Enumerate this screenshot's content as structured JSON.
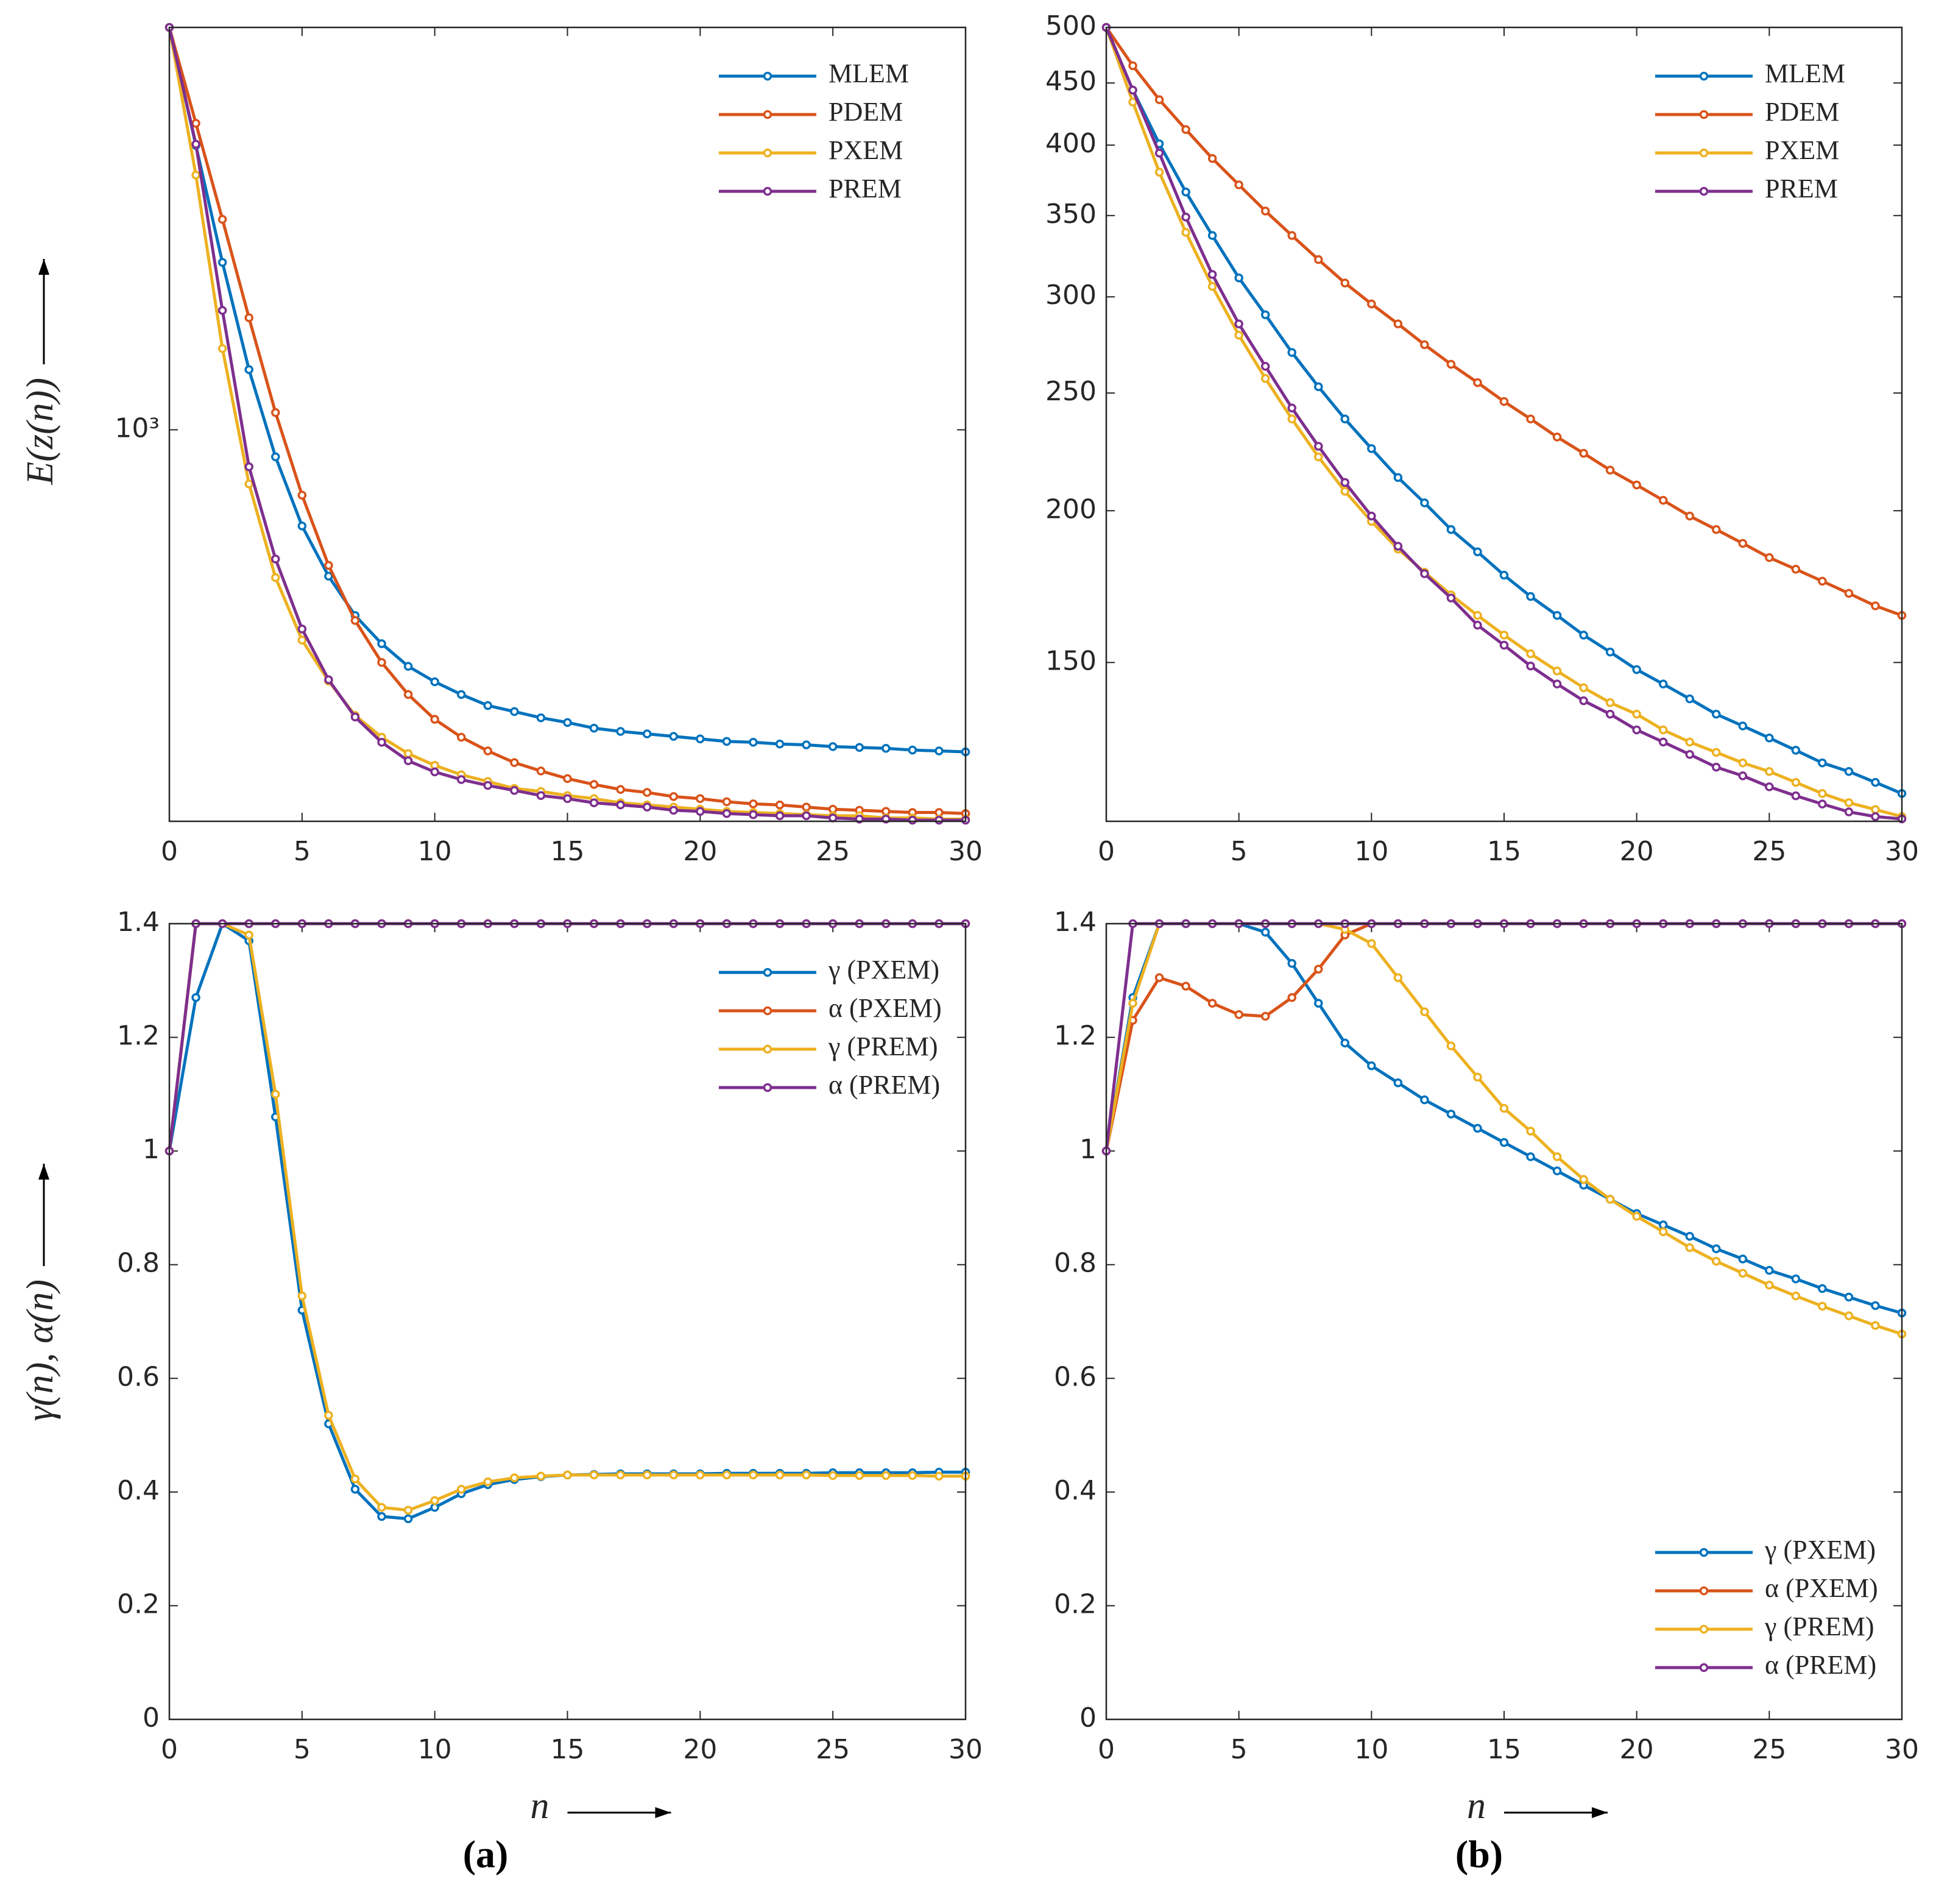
{
  "chart_data": [
    {
      "type": "line",
      "yscale": "log",
      "ylabel": "E(z(n))",
      "legend": "upper right",
      "x": [
        0,
        1,
        2,
        3,
        4,
        5,
        6,
        7,
        8,
        9,
        10,
        11,
        12,
        13,
        14,
        15,
        16,
        17,
        18,
        19,
        20,
        21,
        22,
        23,
        24,
        25,
        26,
        27,
        28,
        29,
        30
      ],
      "xlim": [
        0,
        30
      ],
      "xticks": [
        0,
        5,
        10,
        15,
        20,
        25,
        30
      ],
      "ylim": [
        255,
        4074
      ],
      "yticks": [
        {
          "value": 1000,
          "label": "10³"
        }
      ],
      "series": [
        {
          "name": "MLEM",
          "color": "#0072BD",
          "values": [
            4074,
            2698,
            1794,
            1234,
            910,
            715,
            600,
            523,
            474,
            438,
            415,
            397,
            382,
            374,
            366,
            360,
            353,
            349,
            346,
            343,
            340,
            337,
            336,
            334,
            333,
            331,
            330,
            329,
            327,
            326,
            325
          ]
        },
        {
          "name": "PDEM",
          "color": "#D95319",
          "values": [
            4074,
            2915,
            2085,
            1479,
            1062,
            796,
            623,
            514,
            444,
            397,
            364,
            342,
            326,
            313,
            304,
            296,
            290,
            285,
            282,
            278,
            276,
            273,
            271,
            270,
            268,
            266,
            265,
            264,
            263,
            263,
            262
          ]
        },
        {
          "name": "PXEM",
          "color": "#EDB120",
          "values": [
            4074,
            2433,
            1328,
            828,
            597,
            480,
            416,
            369,
            342,
            323,
            310,
            300,
            293,
            286,
            283,
            279,
            276,
            272,
            270,
            268,
            266,
            264,
            263,
            262,
            261,
            260,
            260,
            258,
            258,
            257,
            257
          ]
        },
        {
          "name": "PREM",
          "color": "#7E2F8E",
          "values": [
            4074,
            2710,
            1517,
            879,
            637,
            499,
            418,
            367,
            336,
            315,
            303,
            295,
            289,
            284,
            279,
            276,
            272,
            270,
            268,
            265,
            264,
            262,
            261,
            260,
            260,
            258,
            257,
            257,
            256,
            256,
            256
          ]
        }
      ]
    },
    {
      "type": "line",
      "yscale": "log",
      "legend": "upper right",
      "x": [
        0,
        1,
        2,
        3,
        4,
        5,
        6,
        7,
        8,
        9,
        10,
        11,
        12,
        13,
        14,
        15,
        16,
        17,
        18,
        19,
        20,
        21,
        22,
        23,
        24,
        25,
        26,
        27,
        28,
        29,
        30
      ],
      "xlim": [
        0,
        30
      ],
      "xticks": [
        0,
        5,
        10,
        15,
        20,
        25,
        30
      ],
      "ylim": [
        111,
        500
      ],
      "yticks": [
        150,
        200,
        250,
        300,
        350,
        400,
        450,
        500
      ],
      "series": [
        {
          "name": "MLEM",
          "color": "#0072BD",
          "values": [
            500,
            444,
            401,
            366,
            337,
            311,
            290,
            270,
            253,
            238,
            225,
            213,
            203,
            193,
            185,
            177,
            170,
            164,
            158,
            153,
            148,
            144,
            140,
            136,
            133,
            130,
            127,
            124,
            122,
            119.5,
            117
          ]
        },
        {
          "name": "PDEM",
          "color": "#D95319",
          "values": [
            500,
            465,
            436,
            412,
            390,
            371,
            353,
            337,
            322,
            308,
            296,
            285,
            274,
            264,
            255,
            246,
            238,
            230,
            223,
            216,
            210,
            204,
            198,
            193,
            188,
            183,
            179,
            175,
            171,
            167,
            164
          ]
        },
        {
          "name": "PXEM",
          "color": "#EDB120",
          "values": [
            500,
            434,
            380,
            339,
            306,
            279,
            257,
            238,
            221.5,
            207.5,
            196,
            186,
            178,
            170.5,
            164,
            158,
            152.5,
            147.6,
            143,
            139,
            136,
            132,
            129,
            126.5,
            124,
            122,
            119.5,
            117,
            115,
            113.5,
            112
          ]
        },
        {
          "name": "PREM",
          "color": "#7E2F8E",
          "values": [
            500,
            444,
            394,
            349,
            313,
            285,
            263,
            243,
            226,
            211,
            198,
            187,
            177.5,
            169.5,
            161,
            155,
            149,
            144,
            139.5,
            136,
            132,
            129,
            126,
            123,
            121,
            118.5,
            116.5,
            114.7,
            113,
            112,
            111.5
          ]
        }
      ]
    },
    {
      "type": "line",
      "ylabel": "γ(n), α(n)",
      "xlabel": "n",
      "legend": "upper right",
      "x": [
        0,
        1,
        2,
        3,
        4,
        5,
        6,
        7,
        8,
        9,
        10,
        11,
        12,
        13,
        14,
        15,
        16,
        17,
        18,
        19,
        20,
        21,
        22,
        23,
        24,
        25,
        26,
        27,
        28,
        29,
        30
      ],
      "xlim": [
        0,
        30
      ],
      "xticks": [
        0,
        5,
        10,
        15,
        20,
        25,
        30
      ],
      "ylim": [
        0,
        1.4
      ],
      "yticks": [
        0,
        0.2,
        0.4,
        0.6,
        0.8,
        1,
        1.2,
        1.4
      ],
      "series": [
        {
          "name": "γ (PXEM)",
          "color": "#0072BD",
          "values": [
            1,
            1.27,
            1.4,
            1.37,
            1.06,
            0.72,
            0.52,
            0.405,
            0.357,
            0.353,
            0.373,
            0.397,
            0.413,
            0.422,
            0.427,
            0.43,
            0.431,
            0.432,
            0.432,
            0.432,
            0.432,
            0.433,
            0.433,
            0.433,
            0.433,
            0.434,
            0.434,
            0.434,
            0.434,
            0.435,
            0.435
          ]
        },
        {
          "name": "α (PXEM)",
          "color": "#D95319",
          "values": [
            1,
            1.4,
            1.4,
            1.4,
            1.4,
            1.4,
            1.4,
            1.4,
            1.4,
            1.4,
            1.4,
            1.4,
            1.4,
            1.4,
            1.4,
            1.4,
            1.4,
            1.4,
            1.4,
            1.4,
            1.4,
            1.4,
            1.4,
            1.4,
            1.4,
            1.4,
            1.4,
            1.4,
            1.4,
            1.4,
            1.4
          ]
        },
        {
          "name": "γ (PREM)",
          "color": "#EDB120",
          "values": [
            1,
            1.4,
            1.4,
            1.38,
            1.1,
            0.745,
            0.535,
            0.423,
            0.373,
            0.368,
            0.385,
            0.405,
            0.418,
            0.425,
            0.428,
            0.43,
            0.43,
            0.43,
            0.43,
            0.43,
            0.43,
            0.43,
            0.43,
            0.43,
            0.43,
            0.429,
            0.429,
            0.429,
            0.429,
            0.428,
            0.428
          ]
        },
        {
          "name": "α (PREM)",
          "color": "#7E2F8E",
          "values": [
            1,
            1.4,
            1.4,
            1.4,
            1.4,
            1.4,
            1.4,
            1.4,
            1.4,
            1.4,
            1.4,
            1.4,
            1.4,
            1.4,
            1.4,
            1.4,
            1.4,
            1.4,
            1.4,
            1.4,
            1.4,
            1.4,
            1.4,
            1.4,
            1.4,
            1.4,
            1.4,
            1.4,
            1.4,
            1.4,
            1.4
          ]
        }
      ]
    },
    {
      "type": "line",
      "xlabel": "n",
      "legend": "lower right",
      "x": [
        0,
        1,
        2,
        3,
        4,
        5,
        6,
        7,
        8,
        9,
        10,
        11,
        12,
        13,
        14,
        15,
        16,
        17,
        18,
        19,
        20,
        21,
        22,
        23,
        24,
        25,
        26,
        27,
        28,
        29,
        30
      ],
      "xlim": [
        0,
        30
      ],
      "xticks": [
        0,
        5,
        10,
        15,
        20,
        25,
        30
      ],
      "ylim": [
        0,
        1.4
      ],
      "yticks": [
        0,
        0.2,
        0.4,
        0.6,
        0.8,
        1,
        1.2,
        1.4
      ],
      "series": [
        {
          "name": "γ (PXEM)",
          "color": "#0072BD",
          "values": [
            1,
            1.27,
            1.4,
            1.4,
            1.4,
            1.4,
            1.385,
            1.33,
            1.26,
            1.19,
            1.15,
            1.12,
            1.09,
            1.065,
            1.04,
            1.015,
            0.99,
            0.965,
            0.94,
            0.915,
            0.89,
            0.87,
            0.85,
            0.828,
            0.81,
            0.79,
            0.775,
            0.758,
            0.743,
            0.728,
            0.715
          ]
        },
        {
          "name": "α (PXEM)",
          "color": "#D95319",
          "values": [
            1,
            1.23,
            1.305,
            1.29,
            1.26,
            1.24,
            1.237,
            1.27,
            1.32,
            1.38,
            1.4,
            1.4,
            1.4,
            1.4,
            1.4,
            1.4,
            1.4,
            1.4,
            1.4,
            1.4,
            1.4,
            1.4,
            1.4,
            1.4,
            1.4,
            1.4,
            1.4,
            1.4,
            1.4,
            1.4,
            1.4
          ]
        },
        {
          "name": "γ (PREM)",
          "color": "#EDB120",
          "values": [
            1,
            1.26,
            1.4,
            1.4,
            1.4,
            1.4,
            1.4,
            1.4,
            1.4,
            1.39,
            1.365,
            1.305,
            1.245,
            1.185,
            1.13,
            1.075,
            1.035,
            0.99,
            0.95,
            0.915,
            0.885,
            0.858,
            0.83,
            0.806,
            0.785,
            0.764,
            0.745,
            0.727,
            0.71,
            0.693,
            0.678
          ]
        },
        {
          "name": "α (PREM)",
          "color": "#7E2F8E",
          "values": [
            1,
            1.4,
            1.4,
            1.4,
            1.4,
            1.4,
            1.4,
            1.4,
            1.4,
            1.4,
            1.4,
            1.4,
            1.4,
            1.4,
            1.4,
            1.4,
            1.4,
            1.4,
            1.4,
            1.4,
            1.4,
            1.4,
            1.4,
            1.4,
            1.4,
            1.4,
            1.4,
            1.4,
            1.4,
            1.4,
            1.4
          ]
        }
      ]
    }
  ],
  "panel_labels": [
    "(a)",
    "(b)"
  ]
}
